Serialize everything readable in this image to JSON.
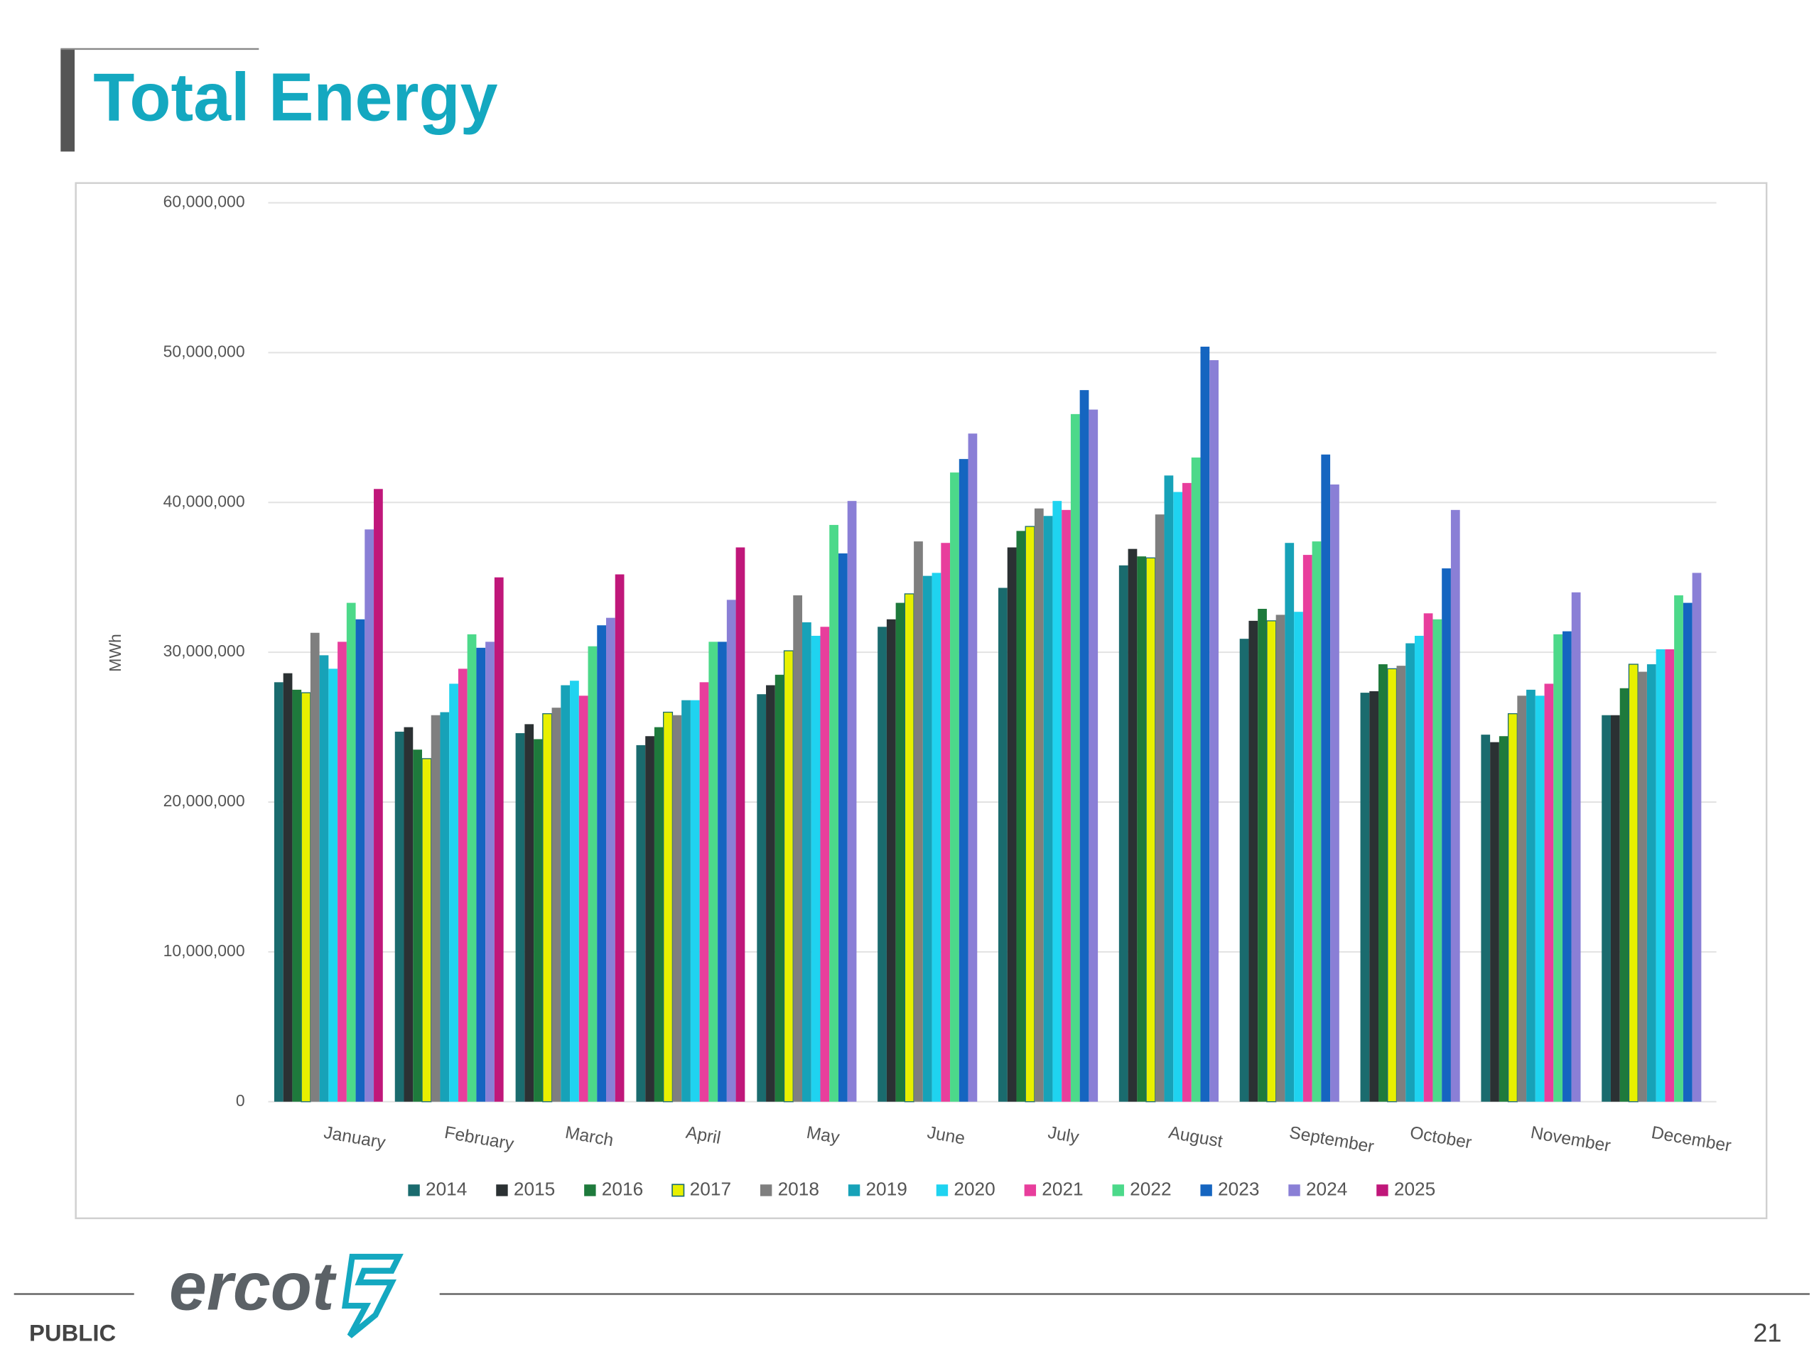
{
  "header": {
    "title": "Total Energy"
  },
  "chart_data": {
    "type": "bar",
    "y_label": "MWh",
    "categories": [
      "January",
      "February",
      "March",
      "April",
      "May",
      "June",
      "July",
      "August",
      "September",
      "October",
      "November",
      "December"
    ],
    "series": [
      {
        "name": "2014",
        "color": "#1a6b6e",
        "values": [
          28000000,
          24700000,
          24600000,
          23800000,
          27200000,
          31700000,
          34300000,
          35800000,
          30900000,
          27300000,
          24500000,
          25800000
        ]
      },
      {
        "name": "2015",
        "color": "#2b3133",
        "values": [
          28600000,
          25000000,
          25200000,
          24400000,
          27800000,
          32200000,
          37000000,
          36900000,
          32100000,
          27400000,
          24000000,
          25800000
        ]
      },
      {
        "name": "2016",
        "color": "#1e7a3c",
        "values": [
          27500000,
          23500000,
          24200000,
          25000000,
          28500000,
          33300000,
          38100000,
          36400000,
          32900000,
          29200000,
          24400000,
          27600000
        ]
      },
      {
        "name": "2017",
        "color": "#e8f000",
        "values": [
          27300000,
          22900000,
          25900000,
          26000000,
          30100000,
          33900000,
          38400000,
          36300000,
          32100000,
          28900000,
          25900000,
          29200000
        ]
      },
      {
        "name": "2018",
        "color": "#7f7f7f",
        "values": [
          31300000,
          25800000,
          26300000,
          25800000,
          33800000,
          37400000,
          39600000,
          39200000,
          32500000,
          29100000,
          27100000,
          28700000
        ]
      },
      {
        "name": "2019",
        "color": "#17a2b8",
        "values": [
          29800000,
          26000000,
          27800000,
          26800000,
          32000000,
          35100000,
          39100000,
          41800000,
          37300000,
          30600000,
          27500000,
          29200000
        ]
      },
      {
        "name": "2020",
        "color": "#1fd3f0",
        "values": [
          28900000,
          27900000,
          28100000,
          26800000,
          31100000,
          35300000,
          40100000,
          40700000,
          32700000,
          31100000,
          27100000,
          30200000
        ]
      },
      {
        "name": "2021",
        "color": "#e83e9c",
        "values": [
          30700000,
          28900000,
          27100000,
          28000000,
          31700000,
          37300000,
          39500000,
          41300000,
          36500000,
          32600000,
          27900000,
          30200000
        ]
      },
      {
        "name": "2022",
        "color": "#4cd98a",
        "values": [
          33300000,
          31200000,
          30400000,
          30700000,
          38500000,
          42000000,
          45900000,
          43000000,
          37400000,
          32200000,
          31200000,
          33800000
        ]
      },
      {
        "name": "2023",
        "color": "#1565c0",
        "values": [
          32200000,
          30300000,
          31800000,
          30700000,
          36600000,
          42900000,
          47500000,
          50400000,
          43200000,
          35600000,
          31400000,
          33300000
        ]
      },
      {
        "name": "2024",
        "color": "#8a7fd6",
        "values": [
          38200000,
          30700000,
          32300000,
          33500000,
          40100000,
          44600000,
          46200000,
          49500000,
          41200000,
          39500000,
          34000000,
          35300000
        ]
      },
      {
        "name": "2025",
        "color": "#c0177a",
        "values": [
          40900000,
          35000000,
          35200000,
          37000000,
          null,
          null,
          null,
          null,
          null,
          null,
          null,
          null
        ]
      }
    ],
    "ylim": [
      0,
      60000000
    ],
    "yticks": [
      0,
      {
        "value": 10000000,
        "label": "10,000,000"
      },
      {
        "value": 20000000,
        "label": "20,000,000"
      },
      {
        "value": 30000000,
        "label": "30,000,000"
      },
      {
        "value": 40000000,
        "label": "40,000,000"
      },
      {
        "value": 50000000,
        "label": "50,000,000"
      },
      {
        "value": 60000000,
        "label": "60,000,000"
      }
    ],
    "grid": true,
    "legend": "bottom"
  },
  "footer": {
    "logo": "ercot",
    "classification": "PUBLIC",
    "page_number": "21"
  }
}
